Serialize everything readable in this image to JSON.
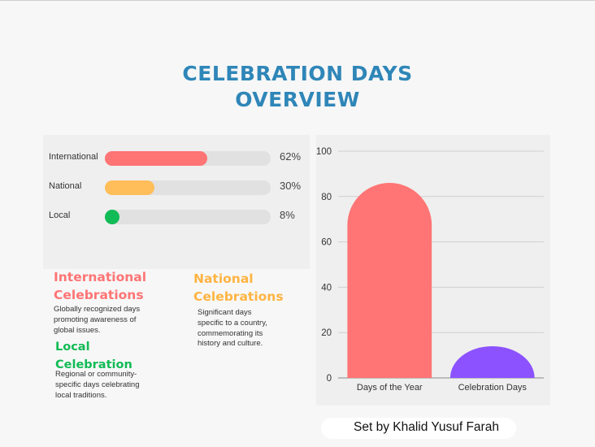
{
  "title": "CELEBRATION DAYS",
  "title_line2": "OVERVIEW",
  "progress_bars": [
    {
      "label": "International",
      "percent": 62,
      "percent_text": "62%",
      "color": "#ff7474"
    },
    {
      "label": "National",
      "percent": 30,
      "percent_text": "30%",
      "color": "#ffbe5a"
    },
    {
      "label": "Local",
      "percent": 8,
      "percent_text": "8%",
      "color": "#11bb55"
    }
  ],
  "categories": {
    "international": {
      "heading_1": "International",
      "heading_2": "Celebrations",
      "desc_1": "Globally recognized days",
      "desc_2": "promoting awareness of",
      "desc_3": "global issues.",
      "color": "#ff7474"
    },
    "national": {
      "heading_1": "National",
      "heading_2": "Celebrations",
      "desc_1": "Significant days",
      "desc_2": "specific to a country,",
      "desc_3": "commemorating its",
      "desc_4": "history and culture.",
      "color": "#ffb442"
    },
    "local": {
      "heading_1": "Local",
      "heading_2": "Celebration",
      "desc_1": "Regional or community-",
      "desc_2": "specific days celebrating",
      "desc_3": "local traditions.",
      "color": "#11bb55"
    }
  },
  "chart_data": {
    "type": "bar",
    "categories": [
      "Days of the Year",
      "Celebration Days"
    ],
    "values": [
      86,
      14
    ],
    "colors": [
      "#ff7474",
      "#8c52ff"
    ],
    "ylim": [
      0,
      100
    ],
    "yticks": [
      0,
      20,
      40,
      60,
      80,
      100
    ],
    "grid": true,
    "title": "",
    "xlabel": "",
    "ylabel": ""
  },
  "credit": "Set by Khalid Yusuf Farah"
}
